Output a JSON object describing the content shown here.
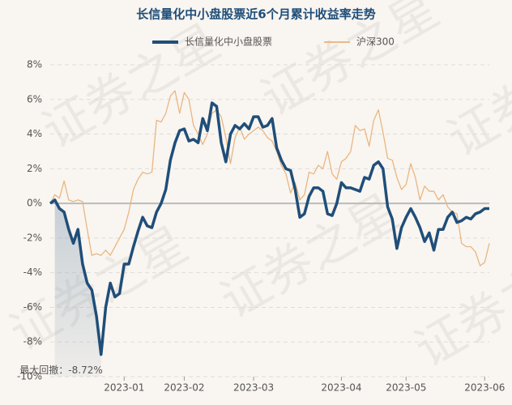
{
  "chart_data": {
    "type": "line",
    "title": "长信量化中小盘股票近6个月累计收益率走势",
    "watermark": "证券之星",
    "annotation": "最大回撤：-8.72%",
    "categories": [
      null,
      null,
      null,
      null,
      null,
      null,
      null,
      null,
      null,
      null,
      null,
      null,
      null,
      null,
      null,
      null,
      "2023-01",
      null,
      null,
      null,
      null,
      null,
      null,
      null,
      null,
      null,
      null,
      null,
      null,
      "2023-02",
      null,
      null,
      null,
      null,
      null,
      null,
      null,
      null,
      null,
      null,
      null,
      null,
      null,
      null,
      "2023-03",
      null,
      null,
      null,
      null,
      null,
      null,
      null,
      null,
      null,
      null,
      null,
      null,
      null,
      null,
      null,
      null,
      null,
      null,
      "2023-04",
      null,
      null,
      null,
      null,
      null,
      null,
      null,
      null,
      null,
      null,
      null,
      null,
      null,
      "2023-05",
      null,
      null,
      null,
      null,
      null,
      null,
      null,
      null,
      null,
      null,
      null,
      null,
      null,
      null,
      null,
      null,
      "2023-06",
      null
    ],
    "series": [
      {
        "name": "长信量化中小盘股票",
        "color": "#1f4e79",
        "width": 3.5,
        "values": [
          0,
          0.2,
          -0.3,
          -0.5,
          -1.5,
          -2.3,
          -1.5,
          -3.5,
          -4.6,
          -5.0,
          -6.5,
          -8.72,
          -6,
          -4.6,
          -5.4,
          -5.2,
          -3.5,
          -3.5,
          -2.5,
          -1.6,
          -0.8,
          -1.3,
          -1.4,
          -0.5,
          0,
          0.8,
          2.5,
          3.5,
          4.2,
          4.3,
          3.6,
          3.7,
          3.5,
          4.9,
          4.2,
          5.8,
          5.6,
          3.5,
          2.4,
          4.0,
          4.5,
          4.3,
          4.6,
          4.3,
          5.0,
          5.0,
          4.4,
          4.5,
          4.9,
          3.2,
          2.5,
          2.0,
          1.9,
          0.8,
          -0.8,
          -0.6,
          0.4,
          0.9,
          0.9,
          0.7,
          -0.6,
          -0.7,
          0.0,
          1.2,
          0.9,
          0.9,
          0.8,
          0.7,
          1.5,
          1.4,
          2.2,
          2.4,
          2.0,
          -0.2,
          -0.9,
          -2.6,
          -1.4,
          -0.8,
          -0.3,
          -0.8,
          -1.4,
          -2.2,
          -1.7,
          -2.7,
          -1.5,
          -1.5,
          -0.8,
          -0.5,
          -1.1,
          -1.0,
          -0.8,
          -0.9,
          -0.6,
          -0.5,
          -0.3,
          -0.3
        ]
      },
      {
        "name": "沪深300",
        "color": "#e8b27a",
        "width": 1.2,
        "values": [
          0,
          0.5,
          0.3,
          1.3,
          0.2,
          0.1,
          0.2,
          0.1,
          -1.5,
          -3.0,
          -2.9,
          -3.0,
          -2.7,
          -3.0,
          -2.5,
          -2.0,
          -1.5,
          -0.5,
          0.8,
          1.4,
          1.8,
          1.7,
          1.8,
          4.8,
          4.7,
          5.2,
          6.2,
          6.5,
          5.2,
          6.4,
          6.0,
          4.5,
          4.0,
          3.4,
          4.0,
          5.2,
          5.4,
          5.0,
          3.8,
          2.3,
          3.8,
          4.4,
          3.7,
          4.0,
          4.2,
          4.4,
          4.2,
          3.8,
          3.6,
          3.0,
          2.2,
          1.7,
          0.6,
          1.2,
          0.2,
          0.5,
          1.8,
          1.7,
          2.2,
          2.0,
          3.0,
          1.7,
          1.4,
          2.4,
          2.6,
          3.0,
          4.5,
          4.2,
          4.3,
          3.3,
          4.8,
          5.4,
          4.1,
          2.6,
          2.5,
          1.5,
          0.8,
          1.1,
          2.3,
          1.5,
          0.2,
          1.0,
          0.7,
          0.7,
          0.2,
          0.5,
          -0.2,
          -0.5,
          -0.6,
          -2.3,
          -2.5,
          -2.5,
          -2.8,
          -3.6,
          -3.4,
          -2.3
        ]
      }
    ],
    "ylim": [
      -10,
      8
    ],
    "yticks": [
      {
        "value": -10,
        "label": "-10%"
      },
      {
        "value": -8,
        "label": "-8%"
      },
      {
        "value": -6,
        "label": "-6%"
      },
      {
        "value": -4,
        "label": "-4%"
      },
      {
        "value": -2,
        "label": "-2%"
      },
      {
        "value": 0,
        "label": "0%"
      },
      {
        "value": 2,
        "label": "2%"
      },
      {
        "value": 4,
        "label": "4%"
      },
      {
        "value": 6,
        "label": "6%"
      },
      {
        "value": 8,
        "label": "8%"
      }
    ],
    "grid": true
  }
}
